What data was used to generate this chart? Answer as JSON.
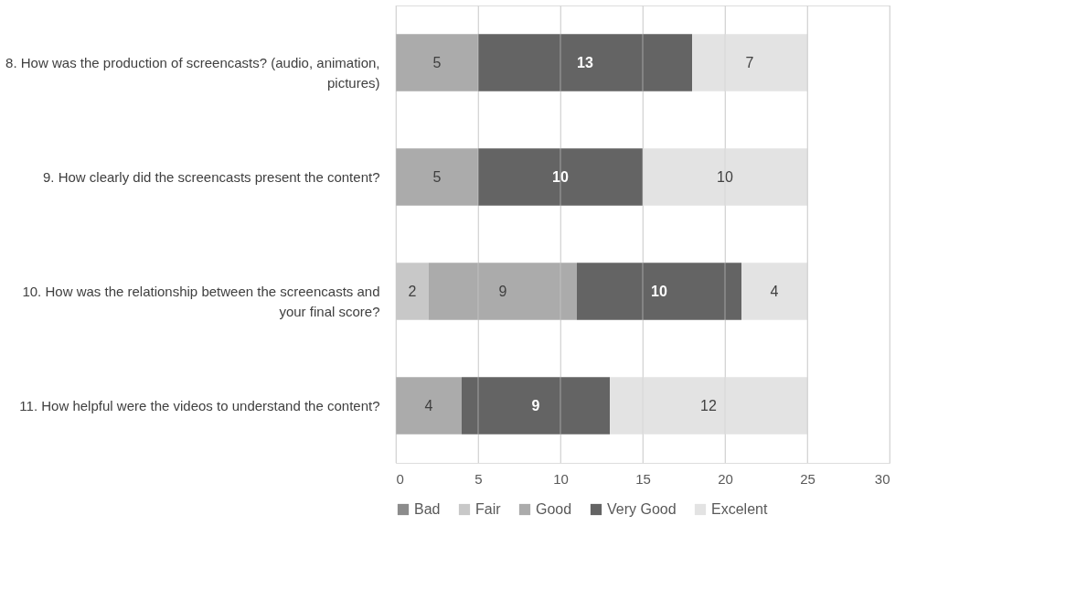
{
  "chart_data": {
    "type": "bar",
    "orientation": "horizontal",
    "stacked": true,
    "data_labels": true,
    "grid": "x",
    "legend": "bottom",
    "categories": [
      "8. How was the production of screencasts? (audio, animation, pictures)",
      "9. How clearly did the screencasts present the content?",
      "10. How was the relationship between the screencasts and your final score?",
      "11. How helpful were the videos to understand the content?"
    ],
    "series": [
      {
        "name": "Bad",
        "color": "#8c8c8c",
        "values": [
          null,
          null,
          null,
          null
        ]
      },
      {
        "name": "Fair",
        "color": "#c8c8c8",
        "values": [
          null,
          null,
          2,
          null
        ]
      },
      {
        "name": "Good",
        "color": "#ababab",
        "values": [
          5,
          5,
          9,
          4
        ]
      },
      {
        "name": "Very Good",
        "color": "#646464",
        "values": [
          13,
          10,
          10,
          9
        ]
      },
      {
        "name": "Excelent",
        "color": "#e3e3e3",
        "values": [
          7,
          10,
          4,
          12
        ]
      }
    ],
    "xlim": [
      0,
      30
    ],
    "xticks": [
      0,
      5,
      10,
      15,
      20,
      25,
      30
    ]
  }
}
